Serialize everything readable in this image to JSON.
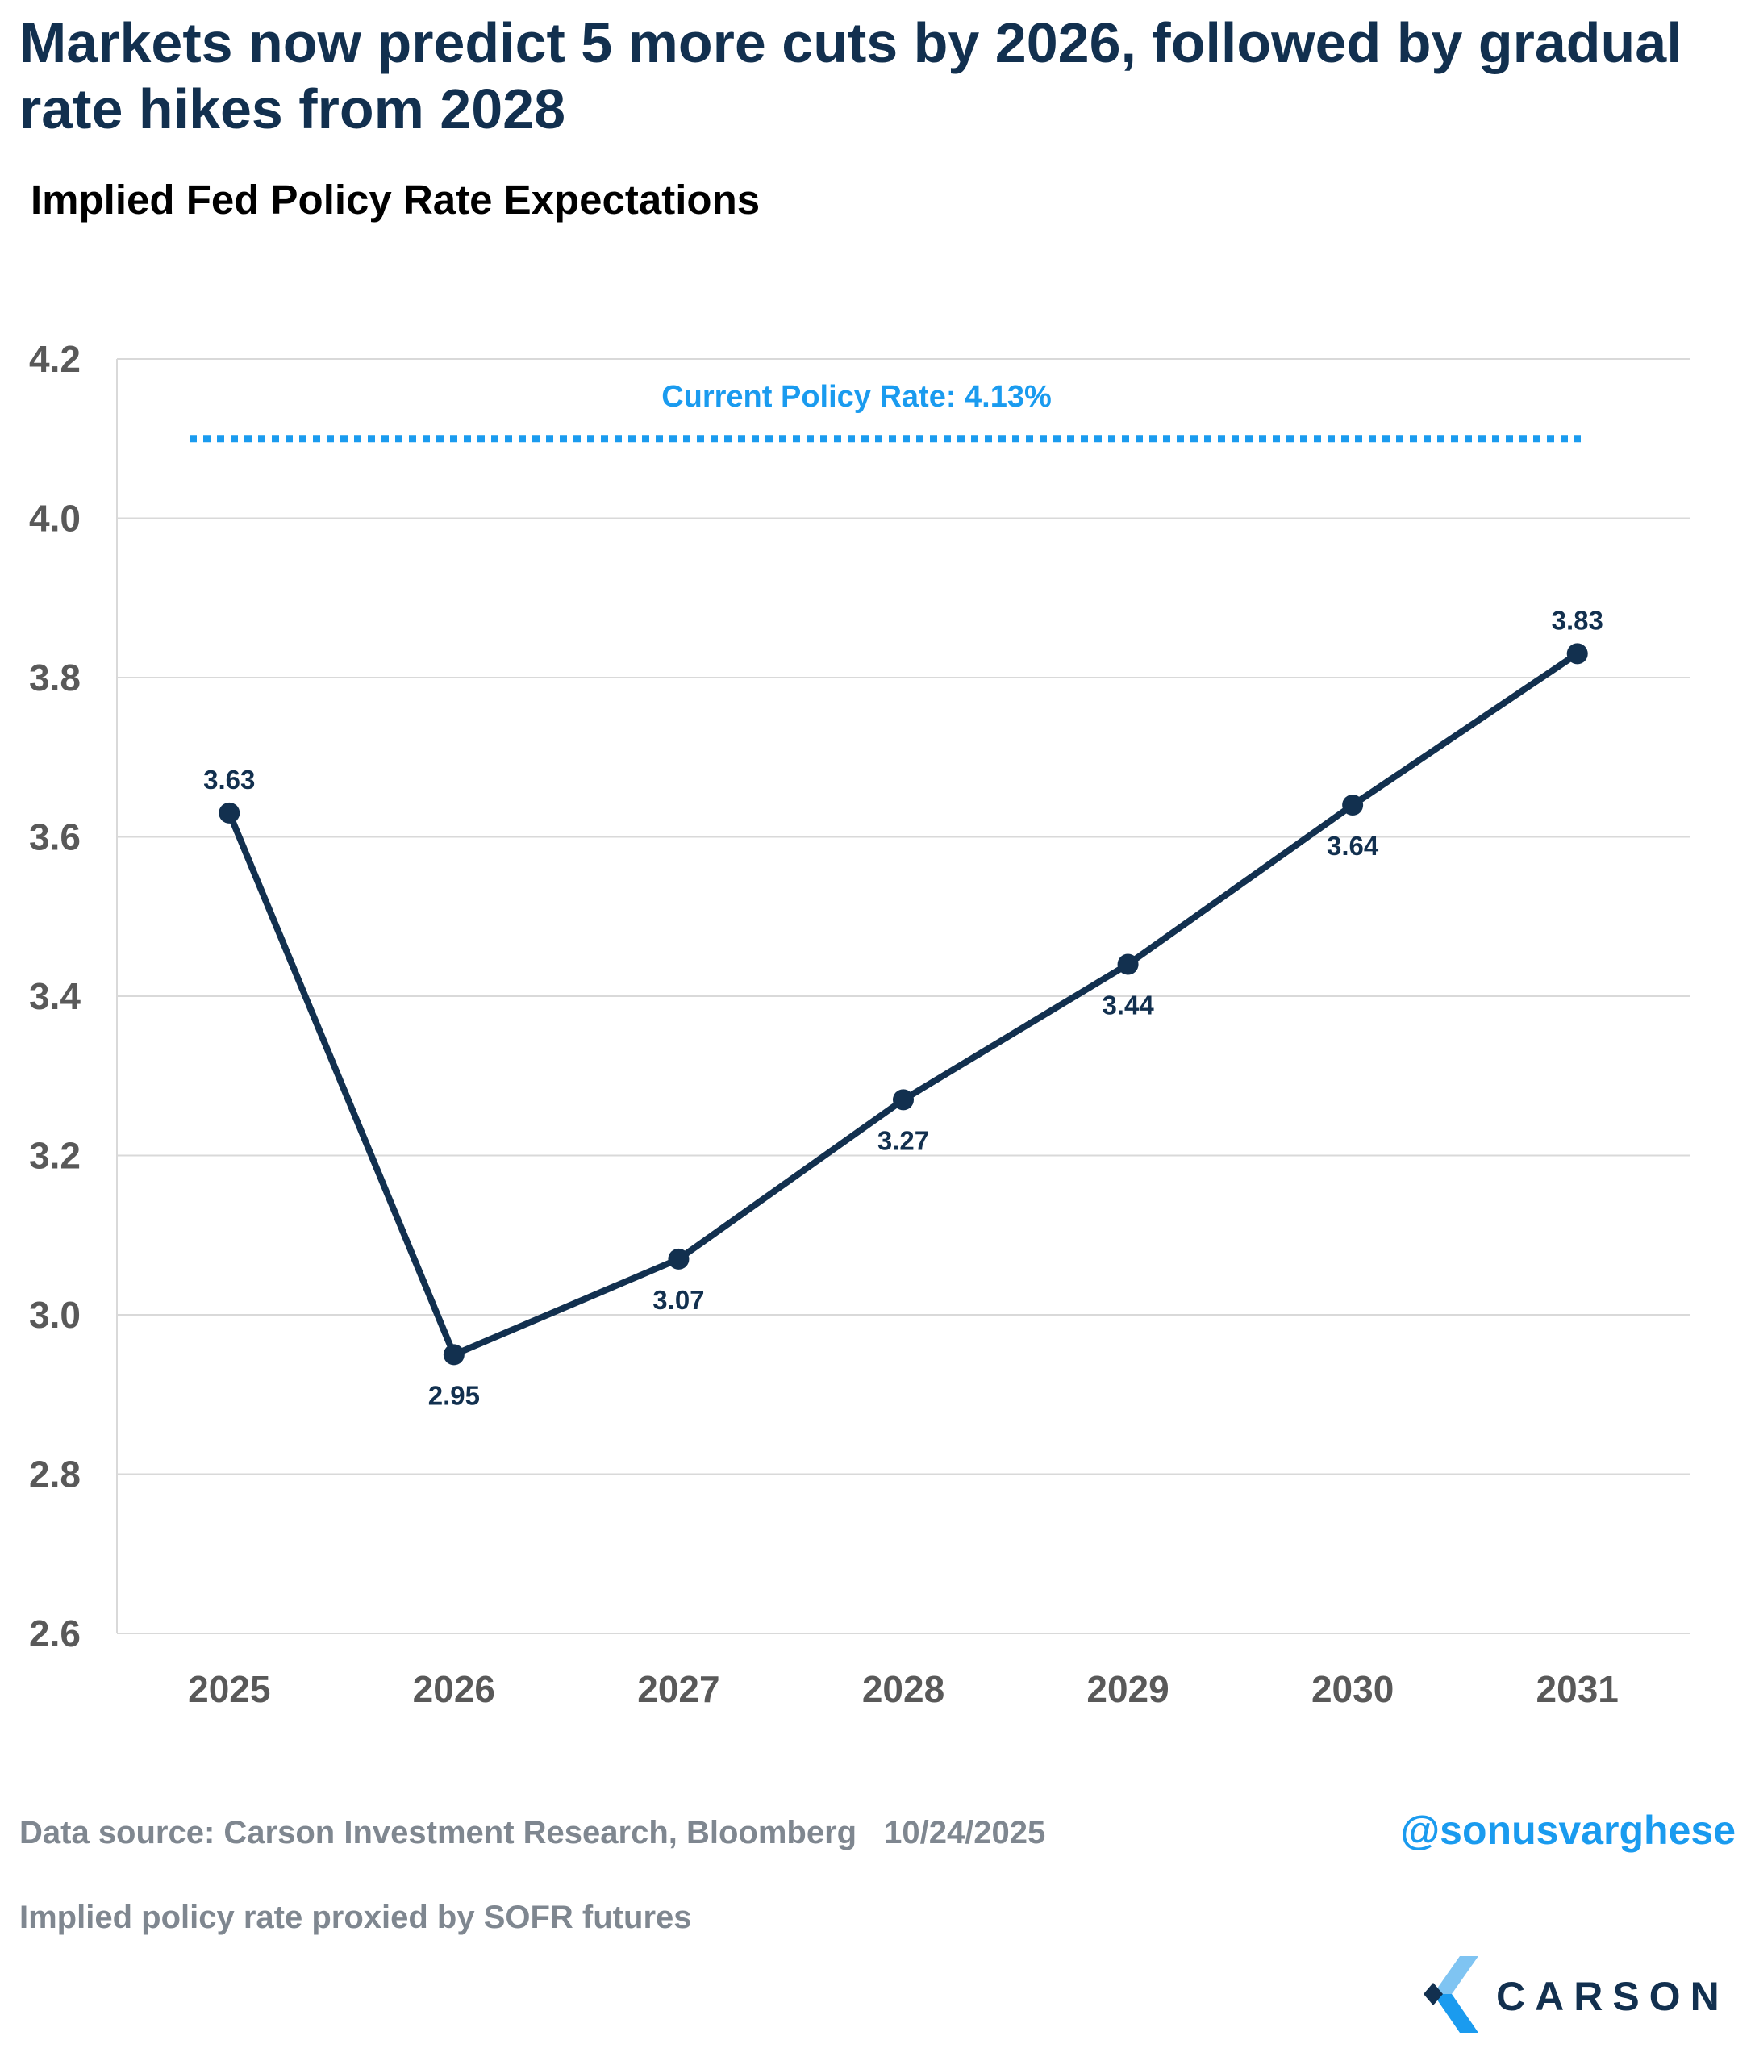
{
  "title": "Markets now predict 5 more cuts by 2026, followed by gradual rate hikes from 2028",
  "subtitle": "Implied Fed Policy Rate Expectations",
  "chart_data": {
    "type": "line",
    "categories": [
      "2025",
      "2026",
      "2027",
      "2028",
      "2029",
      "2030",
      "2031"
    ],
    "series": [
      {
        "values": [
          3.63,
          2.95,
          3.07,
          3.27,
          3.44,
          3.64,
          3.83
        ],
        "labels": [
          "3.63",
          "2.95",
          "3.07",
          "3.27",
          "3.44",
          "3.64",
          "3.83"
        ],
        "color": "#12304f"
      }
    ],
    "reference_line": {
      "value": 4.1,
      "label": "Current Policy Rate: 4.13%",
      "color": "#1a9bef",
      "style": "dotted"
    },
    "ylim": [
      2.6,
      4.2
    ],
    "yticks": [
      "2.6",
      "2.8",
      "3.0",
      "3.2",
      "3.4",
      "3.6",
      "3.8",
      "4.0",
      "4.2"
    ],
    "grid": true,
    "xlabel": "",
    "ylabel": ""
  },
  "footer": {
    "source": "Data source: Carson Investment Research, Bloomberg",
    "date": "10/24/2025",
    "note": "Implied policy rate proxied by SOFR futures",
    "handle": "@sonusvarghese"
  },
  "logo": {
    "text": "CARSON",
    "icon": "carson-chevron-icon"
  }
}
